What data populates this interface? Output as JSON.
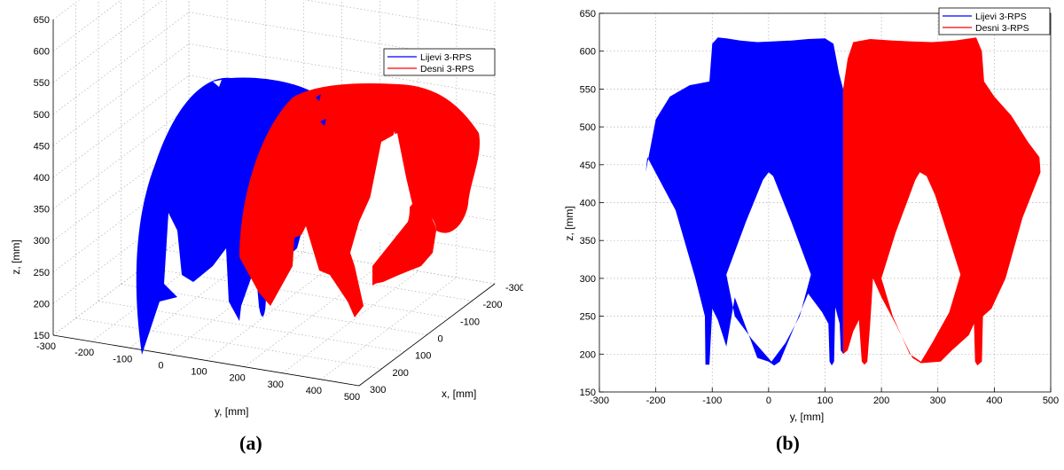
{
  "colors": {
    "left_robot": "#0000ff",
    "right_robot": "#ff0000",
    "grid": "#b0b0b0",
    "axis": "#000000"
  },
  "panel_labels": [
    "(a)",
    "(b)"
  ],
  "chart_data": [
    {
      "type": "scatter",
      "projection": "3d",
      "xlabel": "y, [mm]",
      "ylabel": "x, [mm]",
      "zlabel": "z, [mm]",
      "x_ticks": [
        "-300",
        "-200",
        "-100",
        "0",
        "100",
        "200",
        "300",
        "400",
        "500"
      ],
      "y_ticks": [
        "-300",
        "-200",
        "-100",
        "0",
        "100",
        "200",
        "300"
      ],
      "z_ticks": [
        "150",
        "200",
        "250",
        "300",
        "350",
        "400",
        "450",
        "500",
        "550",
        "600",
        "650"
      ],
      "xlim": [
        -300,
        500
      ],
      "ylim": [
        -300,
        300
      ],
      "zlim": [
        150,
        650
      ],
      "grid": true,
      "legend": {
        "position": "top-right",
        "entries": [
          "Lijevi 3-RPS",
          "Desni 3-RPS"
        ]
      },
      "series": [
        {
          "name": "Lijevi 3-RPS",
          "color": "#0000ff"
        },
        {
          "name": "Desni 3-RPS",
          "color": "#ff0000"
        }
      ]
    },
    {
      "type": "scatter",
      "projection": "y-z",
      "xlabel": "y, [mm]",
      "ylabel": "z, [mm]",
      "x_ticks": [
        "-300",
        "-200",
        "-100",
        "0",
        "100",
        "200",
        "300",
        "400",
        "500"
      ],
      "y_ticks": [
        "150",
        "200",
        "250",
        "300",
        "350",
        "400",
        "450",
        "500",
        "550",
        "600",
        "650"
      ],
      "xlim": [
        -300,
        500
      ],
      "ylim": [
        150,
        650
      ],
      "grid": true,
      "legend": {
        "position": "top-right",
        "entries": [
          "Lijevi 3-RPS",
          "Desni 3-RPS"
        ]
      },
      "series": [
        {
          "name": "Lijevi 3-RPS",
          "color": "#0000ff",
          "outer_boundary": [
            [
              -105,
              560
            ],
            [
              -100,
              610
            ],
            [
              -90,
              618
            ],
            [
              -75,
              617
            ],
            [
              -50,
              614
            ],
            [
              -20,
              612
            ],
            [
              10,
              613
            ],
            [
              40,
              614
            ],
            [
              70,
              616
            ],
            [
              100,
              617
            ],
            [
              115,
              610
            ],
            [
              125,
              570
            ],
            [
              132,
              550
            ],
            [
              132,
              200
            ],
            [
              128,
              205
            ],
            [
              126,
              240
            ],
            [
              118,
              262
            ],
            [
              116,
              190
            ],
            [
              112,
              185
            ],
            [
              108,
              190
            ],
            [
              106,
              240
            ],
            [
              95,
              255
            ],
            [
              70,
              280
            ],
            [
              20,
              190
            ],
            [
              10,
              185
            ],
            [
              0,
              190
            ],
            [
              -20,
              195
            ],
            [
              -60,
              275
            ],
            [
              -75,
              210
            ],
            [
              -90,
              245
            ],
            [
              -100,
              260
            ],
            [
              -105,
              186
            ],
            [
              -112,
              186
            ],
            [
              -113,
              250
            ],
            [
              -130,
              300
            ],
            [
              -165,
              390
            ],
            [
              -215,
              460
            ],
            [
              -218,
              440
            ],
            [
              -200,
              510
            ],
            [
              -175,
              540
            ],
            [
              -140,
              555
            ]
          ],
          "hole": [
            [
              0,
              440
            ],
            [
              8,
              435
            ],
            [
              40,
              375
            ],
            [
              75,
              305
            ],
            [
              55,
              250
            ],
            [
              30,
              215
            ],
            [
              5,
              190
            ],
            [
              -30,
              220
            ],
            [
              -60,
              250
            ],
            [
              -75,
              305
            ],
            [
              -40,
              375
            ],
            [
              -10,
              430
            ]
          ]
        },
        {
          "name": "Desni 3-RPS",
          "color": "#ff0000",
          "outer_boundary": [
            [
              132,
              550
            ],
            [
              140,
              590
            ],
            [
              150,
              612
            ],
            [
              180,
              616
            ],
            [
              220,
              614
            ],
            [
              250,
              613
            ],
            [
              290,
              612
            ],
            [
              330,
              614
            ],
            [
              368,
              618
            ],
            [
              378,
              600
            ],
            [
              382,
              560
            ],
            [
              400,
              540
            ],
            [
              430,
              515
            ],
            [
              460,
              480
            ],
            [
              480,
              460
            ],
            [
              482,
              440
            ],
            [
              450,
              380
            ],
            [
              420,
              300
            ],
            [
              395,
              260
            ],
            [
              380,
              250
            ],
            [
              378,
              190
            ],
            [
              370,
              185
            ],
            [
              366,
              190
            ],
            [
              364,
              240
            ],
            [
              355,
              225
            ],
            [
              325,
              205
            ],
            [
              305,
              190
            ],
            [
              270,
              188
            ],
            [
              255,
              195
            ],
            [
              225,
              240
            ],
            [
              200,
              275
            ],
            [
              185,
              300
            ],
            [
              180,
              240
            ],
            [
              175,
              190
            ],
            [
              170,
              186
            ],
            [
              165,
              190
            ],
            [
              160,
              245
            ],
            [
              150,
              230
            ],
            [
              140,
              205
            ],
            [
              132,
              200
            ]
          ],
          "hole": [
            [
              268,
              440
            ],
            [
              280,
              435
            ],
            [
              295,
              410
            ],
            [
              340,
              305
            ],
            [
              320,
              255
            ],
            [
              290,
              215
            ],
            [
              270,
              190
            ],
            [
              250,
              200
            ],
            [
              220,
              250
            ],
            [
              200,
              300
            ],
            [
              225,
              360
            ],
            [
              245,
              400
            ],
            [
              260,
              430
            ]
          ]
        }
      ]
    }
  ]
}
